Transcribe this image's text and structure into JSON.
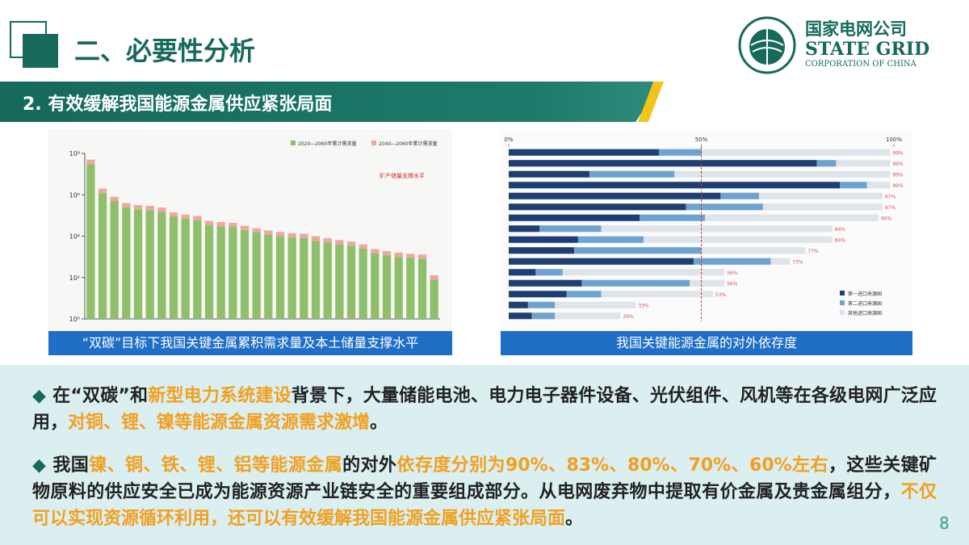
{
  "header": {
    "title": "二、必要性分析",
    "logo_cn": "国家电网公司",
    "logo_en": "STATE GRID",
    "logo_sub": "CORPORATION OF CHINA"
  },
  "section": {
    "title": "2. 有效缓解我国能源金属供应紧张局面"
  },
  "chart_data": [
    {
      "type": "bar",
      "log_scale": true,
      "caption": "“双碳”目标下我国关键金属累积需求量及本土储量支撑水平",
      "annotation": "矿产储量支撑水平",
      "series": [
        {
          "name": "2020—2060年累计需求量",
          "color": "#8fbf6a",
          "values": [
            30000000,
            1200000,
            500000,
            250000,
            200000,
            180000,
            150000,
            90000,
            70000,
            60000,
            35000,
            30000,
            28000,
            20000,
            15000,
            12000,
            10000,
            9000,
            8000,
            6000,
            5000,
            4000,
            3500,
            2500,
            1500,
            1200,
            1000,
            900,
            800,
            80
          ]
        },
        {
          "name": "2040—2060年累计需求量",
          "color": "#f0a6a0",
          "values": [
            20000000,
            800000,
            300000,
            150000,
            120000,
            110000,
            90000,
            50000,
            40000,
            35000,
            20000,
            18000,
            16000,
            12000,
            9000,
            7000,
            6000,
            5000,
            5000,
            4000,
            3000,
            2500,
            2000,
            1500,
            900,
            700,
            600,
            500,
            500,
            50
          ]
        }
      ],
      "ylim": [
        1,
        100000000
      ],
      "yticks": [
        {
          "value": 1,
          "label": "10⁰"
        },
        {
          "value": 100,
          "label": "10²"
        },
        {
          "value": 10000,
          "label": "10⁴"
        },
        {
          "value": 1000000,
          "label": "10⁶"
        },
        {
          "value": 100000000,
          "label": "10⁸"
        }
      ]
    },
    {
      "type": "stacked-barh",
      "caption": "我国关键能源金属的对外依存度",
      "series": [
        {
          "name": "第一进口来源国",
          "color": "#1f3f73",
          "values": [
            39,
            80,
            21,
            86,
            55,
            46,
            34,
            8,
            18,
            17,
            48,
            7,
            19,
            15,
            5,
            6
          ]
        },
        {
          "name": "第二进口来源国",
          "color": "#6fa3cf",
          "values": [
            11,
            5,
            22,
            7,
            10,
            20,
            17,
            16,
            17,
            33,
            20,
            7,
            28,
            9,
            7,
            6
          ]
        },
        {
          "name": "其他进口来源国",
          "color": "#dfe3ea",
          "values": [
            49,
            14,
            56,
            6,
            32,
            31,
            45,
            60,
            49,
            27,
            5,
            42,
            9,
            29,
            21,
            17
          ]
        }
      ],
      "total_labels": [
        "99%",
        "99%",
        "99%",
        "99%",
        "97%",
        "97%",
        "96%",
        "84%",
        "84%",
        "77%",
        "73%",
        "56%",
        "56%",
        "53%",
        "33%",
        "29%"
      ],
      "xlim": [
        0,
        100
      ],
      "xticks": [
        {
          "value": 0,
          "label": "0%"
        },
        {
          "value": 50,
          "label": "50%"
        },
        {
          "value": 100,
          "label": "100%"
        }
      ],
      "reference_line": 50
    }
  ],
  "bullets": [
    [
      {
        "text": "在“双碳”和",
        "hl": false
      },
      {
        "text": "新型电力系统建设",
        "hl": true
      },
      {
        "text": "背景下，大量储能电池、电力电子器件设备、光伏组件、风机等在各级电网广泛应用，",
        "hl": false
      },
      {
        "text": "对铜、锂、镍等能源金属资源需求激增",
        "hl": true
      },
      {
        "text": "。",
        "hl": false
      }
    ],
    [
      {
        "text": "我国",
        "hl": false
      },
      {
        "text": "镍、铜、铁、锂、铝等能源金属",
        "hl": true
      },
      {
        "text": "的对外",
        "hl": false
      },
      {
        "text": "依存度分别为90%、83%、80%、70%、60%左右",
        "hl": true
      },
      {
        "text": "，这些关键矿物原料的供应安全已成为能源资源产业链安全的重要组成部分。从电网废弃物中提取有价金属及贵金属组分，",
        "hl": false
      },
      {
        "text": "不仅可以实现资源循环利用，还可以有效缓解我国能源金属供应紧张局面",
        "hl": true
      },
      {
        "text": "。",
        "hl": false
      }
    ]
  ],
  "page_number": "8"
}
